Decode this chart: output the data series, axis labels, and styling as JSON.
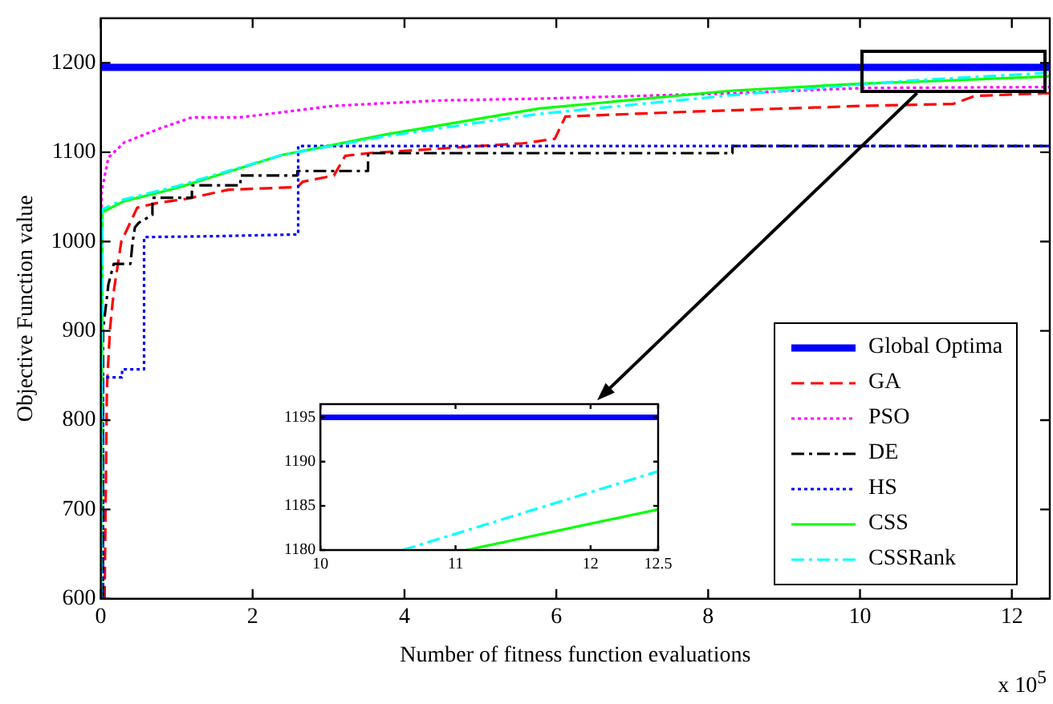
{
  "chart_data": [
    {
      "type": "line",
      "xlabel": "Number of fitness function evaluations",
      "ylabel": "Objective Function value",
      "xlim": [
        0,
        12.5
      ],
      "xticks": [
        0,
        2,
        4,
        6,
        8,
        10,
        12
      ],
      "ylim": [
        600,
        1250
      ],
      "yticks": [
        600,
        700,
        800,
        900,
        1000,
        1100,
        1200
      ],
      "legend": "bottom right",
      "annotations": [
        "x 10$^{5}$"
      ],
      "series": [
        {
          "name": "Global Optima",
          "color": "#0000ff",
          "line_style": "solid",
          "x": [
            0,
            12.5
          ],
          "values": [
            1195,
            1195
          ]
        },
        {
          "name": "GA",
          "color": "#ff0000",
          "line_style": "dashed",
          "x": [
            0.05,
            0.08,
            0.12,
            0.17,
            0.27,
            0.37,
            0.48,
            0.73,
            1.14,
            1.68,
            2.59,
            2.66,
            3.07,
            3.22,
            3.53,
            5.56,
            5.98,
            6.12,
            7.63,
            10.06,
            11.22,
            11.51,
            12.41,
            12.5
          ],
          "values": [
            600,
            835,
            901,
            944,
            1000,
            1018,
            1038,
            1043,
            1048,
            1058,
            1061,
            1067,
            1074,
            1096,
            1099,
            1110,
            1115,
            1140,
            1145,
            1152,
            1154,
            1163,
            1166,
            1166
          ]
        },
        {
          "name": "PSO",
          "color": "#ff00ff",
          "line_style": "dotted",
          "x": [
            0,
            0.01,
            0.1,
            0.31,
            0.79,
            1.2,
            1.83,
            3.07,
            4.46,
            5.77,
            8.3,
            10.06,
            12.5
          ],
          "values": [
            600,
            1056,
            1094,
            1111,
            1127,
            1139,
            1139,
            1152,
            1158,
            1160,
            1166,
            1172,
            1173
          ]
        },
        {
          "name": "DE",
          "color": "#000000",
          "line_style": "dashdot",
          "x": [
            0.03,
            0.03,
            0.1,
            0.17,
            0.39,
            0.42,
            0.45,
            0.5,
            0.68,
            0.68,
            1.2,
            1.2,
            1.84,
            1.84,
            2.59,
            2.59,
            3.52,
            3.52,
            8.32,
            8.32,
            12.5
          ],
          "values": [
            600,
            901,
            952,
            975,
            975,
            1000,
            1016,
            1021,
            1030,
            1049,
            1049,
            1063,
            1063,
            1074,
            1074,
            1079,
            1079,
            1099,
            1099,
            1107,
            1107
          ]
        },
        {
          "name": "HS",
          "color": "#0000ff",
          "line_style": "dotted",
          "x": [
            0.03,
            0.03,
            0.28,
            0.28,
            0.57,
            0.57,
            1.5,
            2.6,
            2.6,
            12.5
          ],
          "values": [
            600,
            848,
            848,
            857,
            857,
            1005,
            1006,
            1008,
            1107,
            1107
          ]
        },
        {
          "name": "CSS",
          "color": "#00ff00",
          "line_style": "solid",
          "x": [
            0,
            0.02,
            0.3,
            1,
            2.39,
            3.76,
            5.77,
            8.32,
            10.06,
            11.08,
            12.5
          ],
          "values": [
            600,
            1033,
            1045,
            1060,
            1097,
            1120,
            1149,
            1169,
            1177,
            1180,
            1185
          ]
        },
        {
          "name": "CSSRank",
          "color": "#00ffff",
          "line_style": "dashdot",
          "x": [
            0,
            0.02,
            0.3,
            1,
            2.39,
            3.76,
            5.77,
            8.32,
            10.61,
            12.5
          ],
          "values": [
            600,
            1036,
            1047,
            1062,
            1097,
            1118,
            1143,
            1164,
            1180,
            1189
          ]
        }
      ]
    },
    {
      "type": "line",
      "xlim": [
        10,
        12.5
      ],
      "xticks": [
        10,
        11,
        12,
        12.5
      ],
      "ylim": [
        1180,
        1196.5
      ],
      "yticks": [
        1180,
        1185,
        1190,
        1195
      ],
      "series": [
        {
          "color": "#0000ff",
          "line_style": "solid",
          "x": [
            10,
            12.5
          ],
          "values": [
            1195,
            1195
          ]
        },
        {
          "color": "#00ffff",
          "line_style": "dashdot",
          "x": [
            10.61,
            12.5
          ],
          "values": [
            1180,
            1188.9
          ]
        },
        {
          "color": "#00ff00",
          "line_style": "solid",
          "x": [
            11.08,
            12.5
          ],
          "values": [
            1180,
            1184.6
          ]
        }
      ]
    }
  ]
}
